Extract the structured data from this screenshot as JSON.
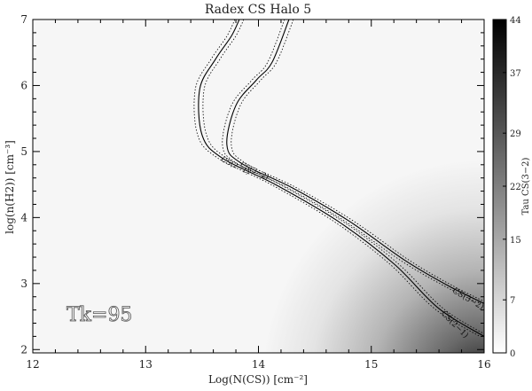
{
  "chart_data": {
    "type": "heatmap",
    "title": "Radex CS Halo 5",
    "xlabel": "Log(N(CS)) [cm⁻²]",
    "ylabel": "log(n(H2)) [cm⁻³]",
    "xlim": [
      12,
      16
    ],
    "ylim": [
      1.95,
      7.0
    ],
    "x_ticks": [
      "12",
      "13",
      "14",
      "15",
      "16"
    ],
    "y_ticks": [
      "2",
      "3",
      "4",
      "5",
      "6",
      "7"
    ],
    "annotation": "Tk=95",
    "colorbar": {
      "label": "Tau CS(3−2)",
      "range": [
        0,
        44
      ],
      "ticks": [
        "0",
        "7",
        "15",
        "22",
        "29",
        "37",
        "44"
      ],
      "colors": [
        "#ffffff",
        "#000000"
      ]
    },
    "contour_series": [
      {
        "name": "CS(3−2)",
        "points": [
          [
            14.27,
            7.0
          ],
          [
            14.12,
            6.35
          ],
          [
            13.98,
            6.08
          ],
          [
            13.8,
            5.7
          ],
          [
            13.72,
            5.1
          ],
          [
            13.85,
            4.82
          ],
          [
            14.3,
            4.45
          ],
          [
            14.8,
            3.95
          ],
          [
            15.3,
            3.35
          ],
          [
            15.7,
            2.95
          ],
          [
            16.0,
            2.7
          ]
        ]
      },
      {
        "name": "CS(2−1)",
        "points": [
          [
            13.83,
            7.0
          ],
          [
            13.76,
            6.75
          ],
          [
            13.62,
            6.4
          ],
          [
            13.48,
            5.95
          ],
          [
            13.5,
            5.25
          ],
          [
            13.68,
            4.9
          ],
          [
            14.15,
            4.5
          ],
          [
            14.7,
            3.95
          ],
          [
            15.2,
            3.3
          ],
          [
            15.6,
            2.62
          ],
          [
            16.0,
            2.2
          ]
        ]
      }
    ]
  }
}
